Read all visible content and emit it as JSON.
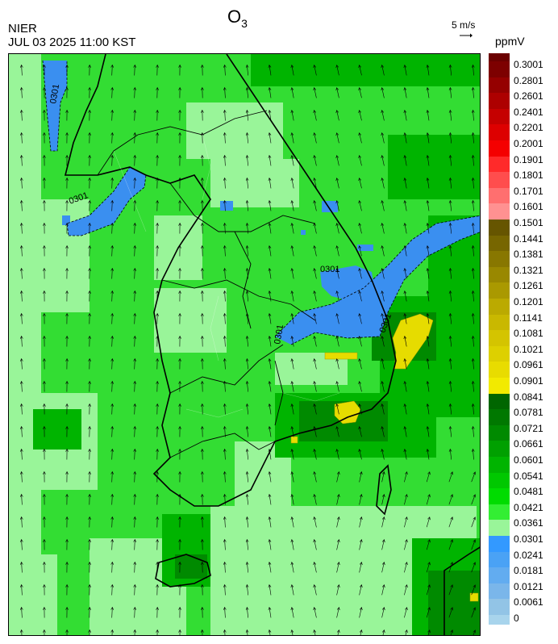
{
  "header": {
    "agency": "NIER",
    "datetime": "JUL 03 2025 11:00 KST",
    "title_main": "O",
    "title_sub": "3",
    "vector_scale_label": "5 m/s",
    "unit": "ppmV"
  },
  "map": {
    "contour_labels": [
      "0301",
      "0301",
      "0301",
      "0301",
      "0301"
    ],
    "colors": {
      "background_green": "#33dd33",
      "light_green": "#99f599",
      "dark_green": "#22aa22",
      "blue": "#3a8ff0",
      "yellow": "#ddd400"
    }
  },
  "legend": {
    "top_color": "#6b0000",
    "levels": [
      {
        "label": "0.3001",
        "color": "#7d0000"
      },
      {
        "label": "0.2801",
        "color": "#950000"
      },
      {
        "label": "0.2601",
        "color": "#ad0000"
      },
      {
        "label": "0.2401",
        "color": "#c50000"
      },
      {
        "label": "0.2201",
        "color": "#dd0000"
      },
      {
        "label": "0.2001",
        "color": "#f40000"
      },
      {
        "label": "0.1901",
        "color": "#ff2a2a"
      },
      {
        "label": "0.1801",
        "color": "#ff4d4d"
      },
      {
        "label": "0.1701",
        "color": "#ff6f6f"
      },
      {
        "label": "0.1601",
        "color": "#ff9191"
      },
      {
        "label": "0.1501",
        "color": "#665500"
      },
      {
        "label": "0.1441",
        "color": "#776600"
      },
      {
        "label": "0.1381",
        "color": "#887700"
      },
      {
        "label": "0.1321",
        "color": "#998800"
      },
      {
        "label": "0.1261",
        "color": "#aa9900"
      },
      {
        "label": "0.1201",
        "color": "#bbaa00"
      },
      {
        "label": "0.1141",
        "color": "#c9b800"
      },
      {
        "label": "0.1081",
        "color": "#d4c400"
      },
      {
        "label": "0.1021",
        "color": "#ddd000"
      },
      {
        "label": "0.0961",
        "color": "#e8dc00"
      },
      {
        "label": "0.0901",
        "color": "#f2ea00"
      },
      {
        "label": "0.0841",
        "color": "#006600"
      },
      {
        "label": "0.0781",
        "color": "#007800"
      },
      {
        "label": "0.0721",
        "color": "#008a00"
      },
      {
        "label": "0.0661",
        "color": "#00a000"
      },
      {
        "label": "0.0601",
        "color": "#00b400"
      },
      {
        "label": "0.0541",
        "color": "#00c800"
      },
      {
        "label": "0.0481",
        "color": "#00dc00"
      },
      {
        "label": "0.0421",
        "color": "#33ee33"
      },
      {
        "label": "0.0361",
        "color": "#99f599"
      },
      {
        "label": "0.0301",
        "color": "#3399ff"
      },
      {
        "label": "0.0241",
        "color": "#4aa2f5"
      },
      {
        "label": "0.0181",
        "color": "#62acf0"
      },
      {
        "label": "0.0121",
        "color": "#7ab6ea"
      },
      {
        "label": "0.0061",
        "color": "#92c4e6"
      },
      {
        "label": "0",
        "color": "#a8d4ec"
      }
    ]
  }
}
